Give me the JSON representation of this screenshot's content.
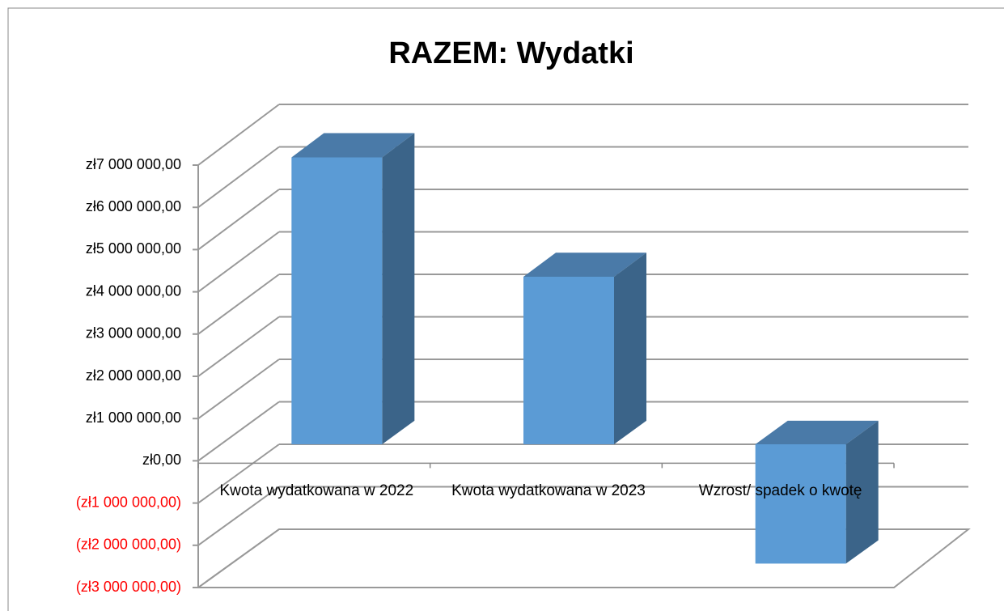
{
  "chart_data": {
    "type": "bar3d",
    "title": "RAZEM: Wydatki",
    "categories": [
      "Kwota wydatkowana w 2022",
      "Kwota wydatkowana w 2023",
      "Wzrost/ spadek o kwotę"
    ],
    "values": [
      6780000,
      3960000,
      -2820000
    ],
    "color": "#5b9bd5",
    "side_color": "#3b6489",
    "top_color": "#4a7aa8",
    "ylim": [
      -3000000,
      7000000
    ],
    "yticks": [
      {
        "value": -3000000,
        "label": "(zł3 000 000,00)"
      },
      {
        "value": -2000000,
        "label": "(zł2 000 000,00)"
      },
      {
        "value": -1000000,
        "label": "(zł1 000 000,00)"
      },
      {
        "value": 0,
        "label": "zł0,00"
      },
      {
        "value": 1000000,
        "label": "zł1 000 000,00"
      },
      {
        "value": 2000000,
        "label": "zł2 000 000,00"
      },
      {
        "value": 3000000,
        "label": "zł3 000 000,00"
      },
      {
        "value": 4000000,
        "label": "zł4 000 000,00"
      },
      {
        "value": 5000000,
        "label": "zł5 000 000,00"
      },
      {
        "value": 6000000,
        "label": "zł6 000 000,00"
      },
      {
        "value": 7000000,
        "label": "zł7 000 000,00"
      }
    ],
    "negative_tick_color": "#ff0000",
    "grid": true
  }
}
